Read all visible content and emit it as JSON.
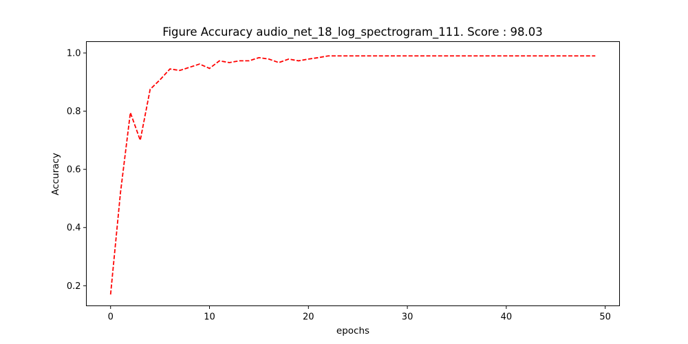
{
  "chart_data": {
    "type": "line",
    "title": "Figure Accuracy audio_net_18_log_spectrogram_111. Score : 98.03",
    "xlabel": "epochs",
    "ylabel": "Accuracy",
    "xlim": [
      -2.45,
      51.45
    ],
    "ylim": [
      0.131,
      1.039
    ],
    "x_ticks": [
      0,
      10,
      20,
      30,
      40,
      50
    ],
    "y_ticks": [
      0.2,
      0.4,
      0.6,
      0.8,
      1.0
    ],
    "x_tick_labels": [
      "0",
      "10",
      "20",
      "30",
      "40",
      "50"
    ],
    "y_tick_labels": [
      "0.2",
      "0.4",
      "0.6",
      "0.8",
      "1.0"
    ],
    "grid": false,
    "line_style": "dashed",
    "color": "#ff0000",
    "series": [
      {
        "x": [
          0,
          1,
          2,
          3,
          4,
          5,
          6,
          7,
          8,
          9,
          10,
          11,
          12,
          13,
          14,
          15,
          16,
          17,
          18,
          19,
          20,
          21,
          22,
          23,
          24,
          25,
          26,
          27,
          28,
          29,
          30,
          31,
          32,
          33,
          34,
          35,
          36,
          37,
          38,
          39,
          40,
          41,
          42,
          43,
          44,
          45,
          46,
          47,
          48,
          49
        ],
        "values": [
          0.17,
          0.52,
          0.795,
          0.7,
          0.875,
          0.908,
          0.945,
          0.94,
          0.951,
          0.962,
          0.947,
          0.973,
          0.967,
          0.973,
          0.973,
          0.984,
          0.979,
          0.967,
          0.979,
          0.973,
          0.979,
          0.984,
          0.99,
          0.99,
          0.99,
          0.99,
          0.99,
          0.99,
          0.99,
          0.99,
          0.99,
          0.99,
          0.99,
          0.99,
          0.99,
          0.99,
          0.99,
          0.99,
          0.99,
          0.99,
          0.99,
          0.99,
          0.99,
          0.99,
          0.99,
          0.99,
          0.99,
          0.99,
          0.99,
          0.99
        ]
      }
    ]
  }
}
